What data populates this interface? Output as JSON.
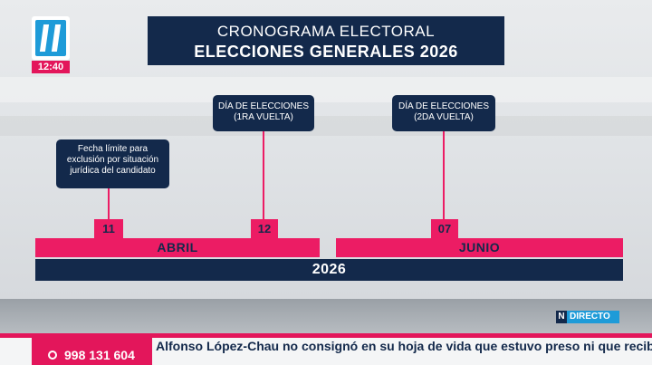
{
  "channel": {
    "logo_icon": "channel-n-logo-icon",
    "time": "12:40",
    "live_badge": "DIRECTO",
    "live_badge_letter": "N",
    "colors": {
      "navy": "#13294b",
      "pink": "#ec1c64",
      "blue": "#1e9bd8"
    }
  },
  "title": {
    "line1": "CRONOGRAMA ELECTORAL",
    "line2": "ELECCIONES GENERALES 2026"
  },
  "timeline": {
    "events": [
      {
        "lines": [
          "Fecha límite para",
          "exclusión por situación",
          "jurídica del candidato"
        ],
        "day": "11"
      },
      {
        "lines": [
          "DÍA DE ELECCIONES",
          "(1RA VUELTA)"
        ],
        "day": "12"
      },
      {
        "lines": [
          "DÍA DE ELECCIONES",
          "(2DA VUELTA)"
        ],
        "day": "07"
      }
    ],
    "months": [
      "ABRIL",
      "JUNIO"
    ],
    "year": "2026"
  },
  "ticker": {
    "phone_icon": "phone-icon",
    "phone": "998 131 604",
    "headline": "Alfonso López-Chau no consignó en su hoja de vida que estuvo preso ni que recibió un"
  }
}
